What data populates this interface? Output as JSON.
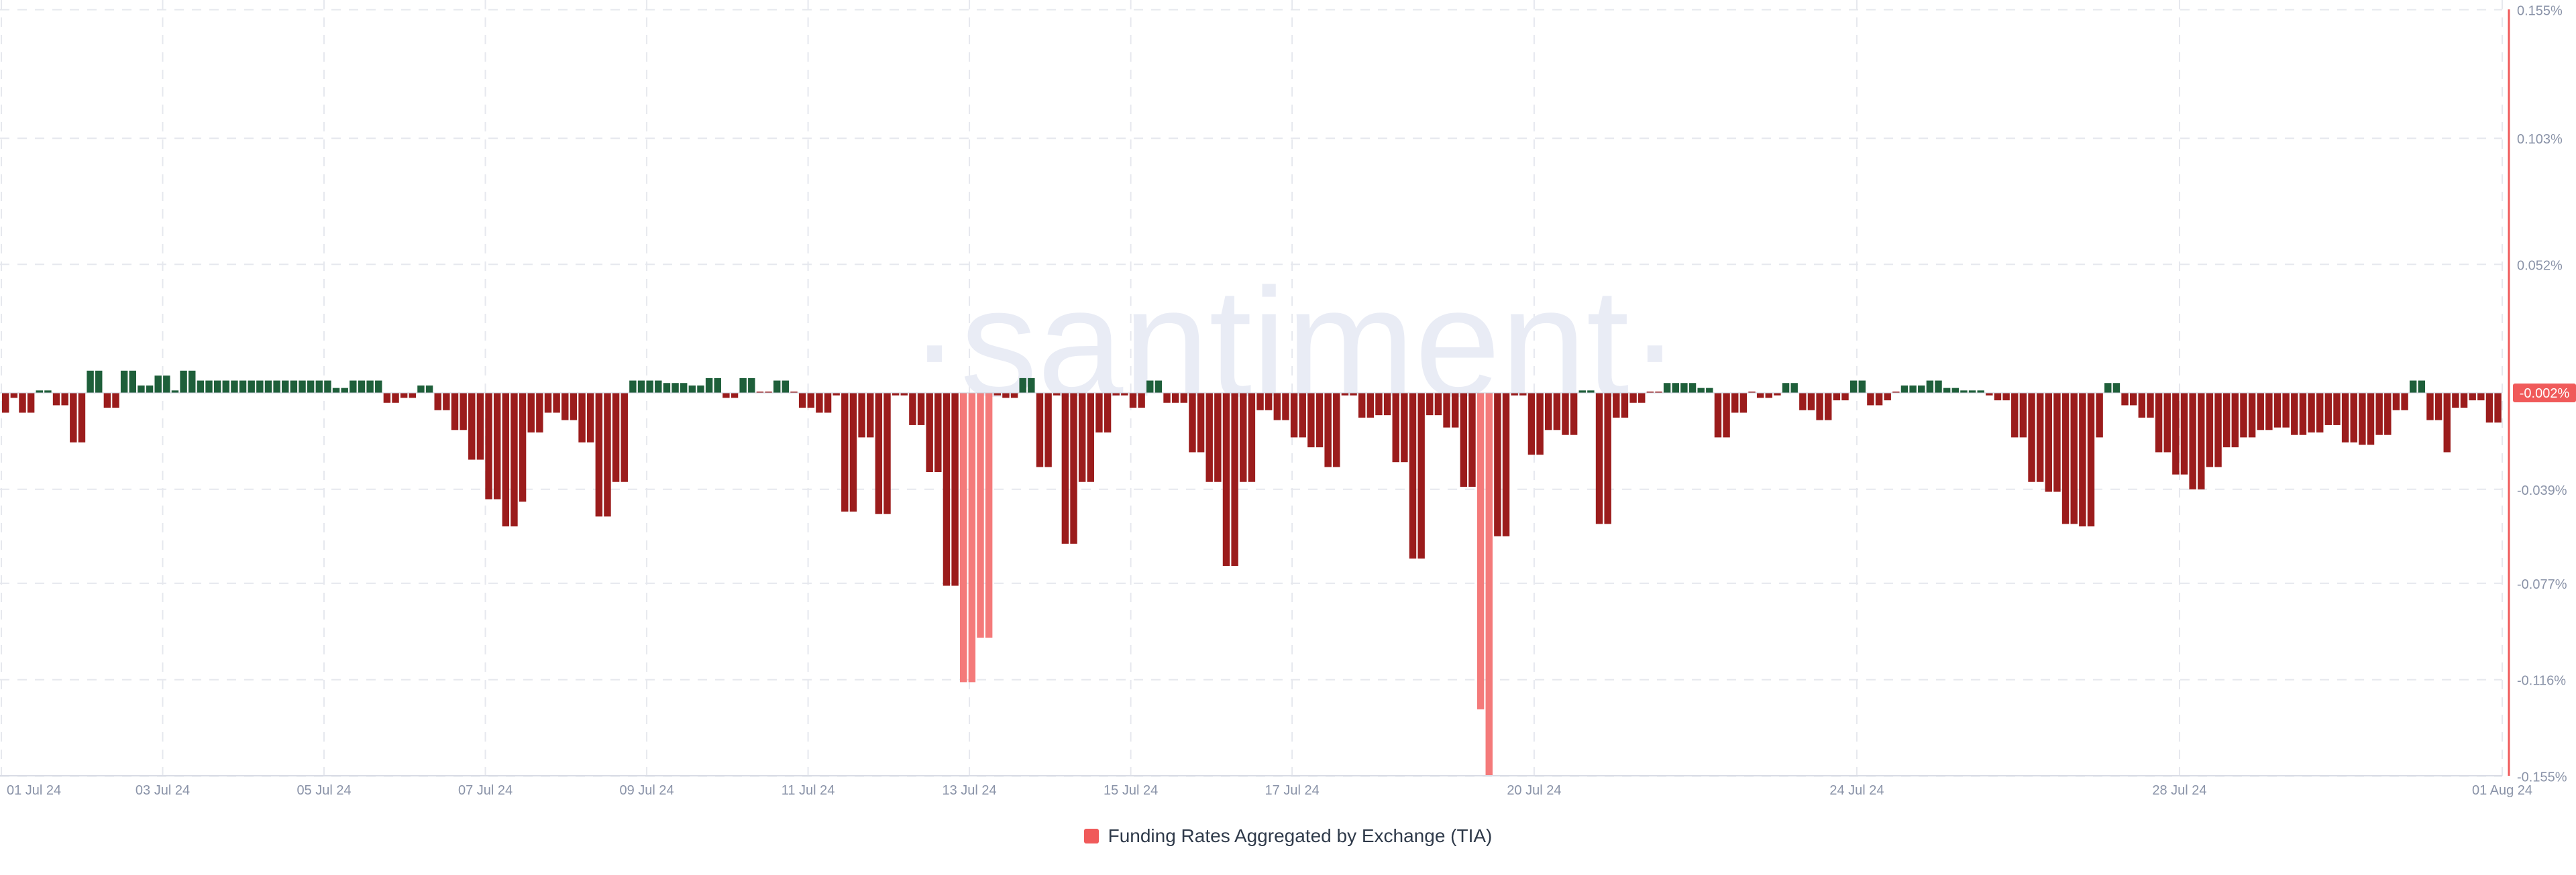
{
  "watermark": "·santiment·",
  "chart_data": {
    "type": "bar",
    "title": "",
    "xlabel": "",
    "ylabel": "",
    "grid": true,
    "legend_position": "bottom-center",
    "ylim": [
      -0.155,
      0.155
    ],
    "y_ticks": [
      0.155,
      0.103,
      0.052,
      -0.039,
      -0.077,
      -0.116,
      -0.155
    ],
    "y_tick_labels": [
      "0.155%",
      "0.103%",
      "0.052%",
      "-0.039%",
      "-0.077%",
      "-0.116%",
      "-0.155%"
    ],
    "x_ticks": [
      {
        "day": 0,
        "label": "01 Jul 24"
      },
      {
        "day": 2,
        "label": "03 Jul 24"
      },
      {
        "day": 4,
        "label": "05 Jul 24"
      },
      {
        "day": 6,
        "label": "07 Jul 24"
      },
      {
        "day": 8,
        "label": "09 Jul 24"
      },
      {
        "day": 10,
        "label": "11 Jul 24"
      },
      {
        "day": 12,
        "label": "13 Jul 24"
      },
      {
        "day": 14,
        "label": "15 Jul 24"
      },
      {
        "day": 16,
        "label": "17 Jul 24"
      },
      {
        "day": 19,
        "label": "20 Jul 24"
      },
      {
        "day": 23,
        "label": "24 Jul 24"
      },
      {
        "day": 27,
        "label": "28 Jul 24"
      },
      {
        "day": 31,
        "label": "01 Aug 24"
      }
    ],
    "current_value_label": "-0.002%",
    "colors": {
      "positive": "#1e5f3a",
      "negative": "#9b1c1c",
      "extreme": "#f47a7a",
      "accent": "#f05a5a",
      "grid": "#e6e8ee",
      "tick_text": "#8a93a8",
      "watermark": "#e9ecf5"
    },
    "extreme_threshold": -0.095,
    "series": [
      {
        "name": "Funding Rates Aggregated by Exchange (TIA)",
        "values": [
          -0.008,
          -0.002,
          -0.008,
          -0.008,
          0.001,
          0.001,
          -0.005,
          -0.005,
          -0.02,
          -0.02,
          0.009,
          0.009,
          -0.006,
          -0.006,
          0.009,
          0.009,
          0.003,
          0.003,
          0.007,
          0.007,
          0.001,
          0.009,
          0.009,
          0.005,
          0.005,
          0.005,
          0.005,
          0.005,
          0.005,
          0.005,
          0.005,
          0.005,
          0.005,
          0.005,
          0.005,
          0.005,
          0.005,
          0.005,
          0.005,
          0.002,
          0.002,
          0.005,
          0.005,
          0.005,
          0.005,
          -0.004,
          -0.004,
          -0.002,
          -0.002,
          0.003,
          0.003,
          -0.007,
          -0.007,
          -0.015,
          -0.015,
          -0.027,
          -0.027,
          -0.043,
          -0.043,
          -0.054,
          -0.054,
          -0.044,
          -0.016,
          -0.016,
          -0.008,
          -0.008,
          -0.011,
          -0.011,
          -0.02,
          -0.02,
          -0.05,
          -0.05,
          -0.036,
          -0.036,
          0.005,
          0.005,
          0.005,
          0.005,
          0.004,
          0.004,
          0.004,
          0.003,
          0.003,
          0.006,
          0.006,
          -0.002,
          -0.002,
          0.006,
          0.006,
          0.0,
          0.0,
          0.005,
          0.005,
          0.0,
          -0.006,
          -0.006,
          -0.008,
          -0.008,
          -0.001,
          -0.048,
          -0.048,
          -0.018,
          -0.018,
          -0.049,
          -0.049,
          -0.001,
          -0.001,
          -0.013,
          -0.013,
          -0.032,
          -0.032,
          -0.078,
          -0.078,
          -0.117,
          -0.117,
          -0.099,
          -0.099,
          -0.001,
          -0.002,
          -0.002,
          0.006,
          0.006,
          -0.03,
          -0.03,
          -0.001,
          -0.061,
          -0.061,
          -0.036,
          -0.036,
          -0.016,
          -0.016,
          -0.001,
          -0.001,
          -0.006,
          -0.006,
          0.005,
          0.005,
          -0.004,
          -0.004,
          -0.004,
          -0.024,
          -0.024,
          -0.036,
          -0.036,
          -0.07,
          -0.07,
          -0.036,
          -0.036,
          -0.007,
          -0.007,
          -0.011,
          -0.011,
          -0.018,
          -0.018,
          -0.022,
          -0.022,
          -0.03,
          -0.03,
          -0.001,
          -0.001,
          -0.01,
          -0.01,
          -0.009,
          -0.009,
          -0.028,
          -0.028,
          -0.067,
          -0.067,
          -0.009,
          -0.009,
          -0.014,
          -0.014,
          -0.038,
          -0.038,
          -0.128,
          -0.155,
          -0.058,
          -0.058,
          -0.001,
          -0.001,
          -0.025,
          -0.025,
          -0.015,
          -0.015,
          -0.017,
          -0.017,
          0.001,
          0.001,
          -0.053,
          -0.053,
          -0.01,
          -0.01,
          -0.004,
          -0.004,
          0.0,
          0.0,
          0.004,
          0.004,
          0.004,
          0.004,
          0.002,
          0.002,
          -0.018,
          -0.018,
          -0.008,
          -0.008,
          0.0,
          -0.002,
          -0.002,
          -0.001,
          0.004,
          0.004,
          -0.007,
          -0.007,
          -0.011,
          -0.011,
          -0.003,
          -0.003,
          0.005,
          0.005,
          -0.005,
          -0.005,
          -0.003,
          0.0,
          0.003,
          0.003,
          0.003,
          0.005,
          0.005,
          0.002,
          0.002,
          0.001,
          0.001,
          0.001,
          -0.001,
          -0.003,
          -0.003,
          -0.018,
          -0.018,
          -0.036,
          -0.036,
          -0.04,
          -0.04,
          -0.053,
          -0.053,
          -0.054,
          -0.054,
          -0.018,
          0.004,
          0.004,
          -0.005,
          -0.005,
          -0.01,
          -0.01,
          -0.024,
          -0.024,
          -0.033,
          -0.033,
          -0.039,
          -0.039,
          -0.03,
          -0.03,
          -0.022,
          -0.022,
          -0.018,
          -0.018,
          -0.015,
          -0.015,
          -0.014,
          -0.014,
          -0.017,
          -0.017,
          -0.016,
          -0.016,
          -0.013,
          -0.013,
          -0.02,
          -0.02,
          -0.021,
          -0.021,
          -0.017,
          -0.017,
          -0.007,
          -0.007,
          0.005,
          0.005,
          -0.011,
          -0.011,
          -0.024,
          -0.006,
          -0.006,
          -0.003,
          -0.003,
          -0.012,
          -0.012
        ]
      }
    ]
  }
}
